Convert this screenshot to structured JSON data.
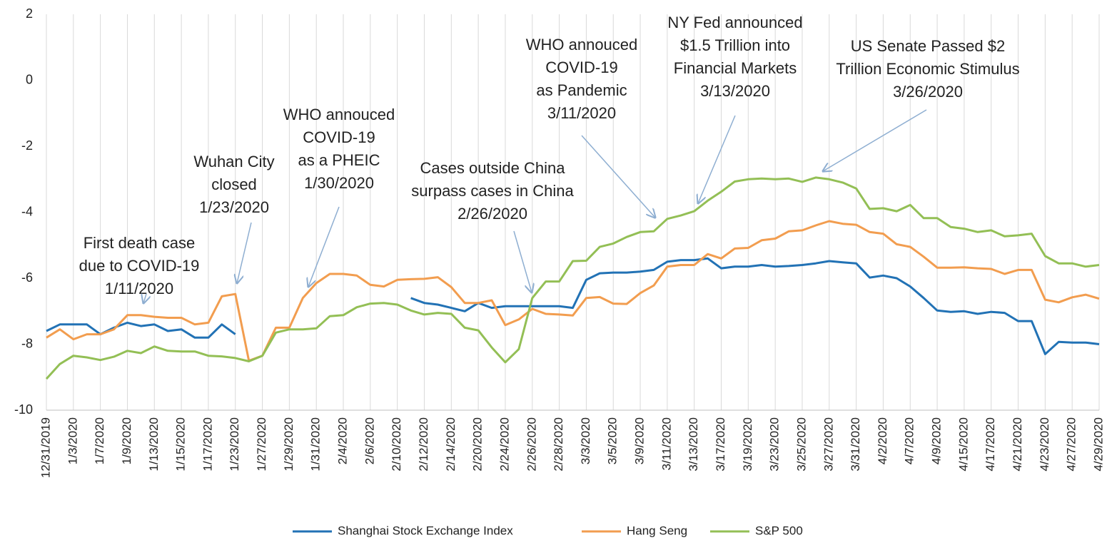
{
  "chart_data": {
    "type": "line",
    "categories": [
      "12/31/2019",
      null,
      "1/3/2020",
      null,
      "1/7/2020",
      null,
      "1/9/2020",
      null,
      "1/13/2020",
      null,
      "1/15/2020",
      null,
      "1/17/2020",
      null,
      "1/23/2020",
      null,
      "1/27/2020",
      null,
      "1/29/2020",
      null,
      "1/31/2020",
      null,
      "2/4/2020",
      null,
      "2/6/2020",
      null,
      "2/10/2020",
      null,
      "2/12/2020",
      null,
      "2/14/2020",
      null,
      "2/20/2020",
      null,
      "2/24/2020",
      null,
      "2/26/2020",
      null,
      "2/28/2020",
      null,
      "3/3/2020",
      null,
      "3/5/2020",
      null,
      "3/9/2020",
      null,
      "3/11/2020",
      null,
      "3/13/2020",
      null,
      "3/17/2020",
      null,
      "3/19/2020",
      null,
      "3/23/2020",
      null,
      "3/25/2020",
      null,
      "3/27/2020",
      null,
      "3/31/2020",
      null,
      "4/2/2020",
      null,
      "4/7/2020",
      null,
      "4/9/2020",
      null,
      "4/15/2020",
      null,
      "4/17/2020",
      null,
      "4/21/2020",
      null,
      "4/23/2020",
      null,
      "4/27/2020",
      null,
      "4/29/2020"
    ],
    "series": [
      {
        "name": "Shanghai Stock Exchange Index",
        "color": "#2272b5",
        "values": [
          -7.6,
          -7.4,
          -7.4,
          -7.4,
          -7.7,
          -7.5,
          -7.35,
          -7.45,
          -7.4,
          -7.6,
          -7.55,
          -7.8,
          -7.8,
          -7.4,
          -7.7,
          null,
          null,
          null,
          null,
          null,
          null,
          null,
          null,
          null,
          null,
          null,
          null,
          -6.6,
          -6.75,
          -6.8,
          -6.9,
          -7.0,
          -6.75,
          -6.9,
          -6.85,
          -6.85,
          -6.85,
          -6.85,
          -6.85,
          -6.9,
          -6.05,
          -5.85,
          -5.83,
          -5.83,
          -5.8,
          -5.75,
          -5.5,
          -5.45,
          -5.45,
          -5.4,
          -5.7,
          -5.65,
          -5.65,
          -5.6,
          -5.65,
          -5.63,
          -5.6,
          -5.55,
          -5.48,
          -5.52,
          -5.55,
          -5.98,
          -5.92,
          -6.0,
          -6.25,
          -6.6,
          -6.98,
          -7.02,
          -7.0,
          -7.08,
          -7.02,
          -7.05,
          -7.3,
          -7.3,
          -8.3,
          -7.93,
          -7.95,
          -7.95,
          -8.0
        ]
      },
      {
        "name": "Hang Seng",
        "color": "#f29d4f",
        "values": [
          -7.8,
          -7.55,
          -7.85,
          -7.7,
          -7.7,
          -7.55,
          -7.12,
          -7.12,
          -7.17,
          -7.2,
          -7.2,
          -7.4,
          -7.35,
          -6.55,
          -6.48,
          -8.5,
          -8.35,
          -7.5,
          -7.5,
          -6.6,
          -6.15,
          -5.87,
          -5.87,
          -5.92,
          -6.2,
          -6.25,
          -6.05,
          -6.03,
          -6.02,
          -5.97,
          -6.27,
          -6.75,
          -6.75,
          -6.67,
          -7.42,
          -7.25,
          -6.93,
          -7.08,
          -7.1,
          -7.13,
          -6.6,
          -6.57,
          -6.77,
          -6.78,
          -6.45,
          -6.22,
          -5.65,
          -5.6,
          -5.6,
          -5.27,
          -5.4,
          -5.1,
          -5.08,
          -4.85,
          -4.8,
          -4.58,
          -4.55,
          -4.4,
          -4.27,
          -4.35,
          -4.38,
          -4.6,
          -4.65,
          -4.97,
          -5.05,
          -5.35,
          -5.68,
          -5.68,
          -5.67,
          -5.7,
          -5.72,
          -5.87,
          -5.75,
          -5.75,
          -6.65,
          -6.73,
          -6.58,
          -6.5,
          -6.62
        ]
      },
      {
        "name": "S&P 500",
        "color": "#93bf55",
        "values": [
          -9.05,
          -8.6,
          -8.35,
          -8.4,
          -8.48,
          -8.38,
          -8.2,
          -8.27,
          -8.07,
          -8.2,
          -8.22,
          -8.22,
          -8.35,
          -8.37,
          -8.42,
          -8.52,
          -8.35,
          -7.65,
          -7.55,
          -7.55,
          -7.52,
          -7.15,
          -7.12,
          -6.88,
          -6.77,
          -6.75,
          -6.8,
          -6.98,
          -7.1,
          -7.05,
          -7.08,
          -7.5,
          -7.58,
          -8.1,
          -8.55,
          -8.15,
          -6.6,
          -6.1,
          -6.1,
          -5.48,
          -5.47,
          -5.05,
          -4.95,
          -4.75,
          -4.6,
          -4.58,
          -4.2,
          -4.1,
          -3.97,
          -3.65,
          -3.38,
          -3.07,
          -3.0,
          -2.98,
          -3.0,
          -2.98,
          -3.08,
          -2.95,
          -3.0,
          -3.1,
          -3.28,
          -3.9,
          -3.88,
          -3.97,
          -3.78,
          -4.18,
          -4.18,
          -4.45,
          -4.5,
          -4.6,
          -4.55,
          -4.73,
          -4.7,
          -4.65,
          -5.33,
          -5.55,
          -5.55,
          -5.65,
          -5.6
        ]
      }
    ],
    "ylim": [
      -10,
      2
    ],
    "yticks": [
      -10,
      -8,
      -6,
      -4,
      -2,
      0,
      2
    ],
    "grid": true,
    "annotations": [
      [
        "First death case",
        "due to COVID-19",
        "1/11/2020"
      ],
      [
        "Wuhan City",
        "closed",
        "1/23/2020"
      ],
      [
        "WHO annouced",
        "COVID-19",
        "as a PHEIC",
        "1/30/2020"
      ],
      [
        "Cases outside China",
        "surpass cases in China",
        "2/26/2020"
      ],
      [
        "WHO annouced",
        "COVID-19",
        "as Pandemic",
        "3/11/2020"
      ],
      [
        "NY Fed announced",
        "$1.5 Trillion into",
        "Financial Markets",
        "3/13/2020"
      ],
      [
        "US Senate Passed $2",
        "Trillion Economic Stimulus",
        "3/26/2020"
      ]
    ]
  }
}
